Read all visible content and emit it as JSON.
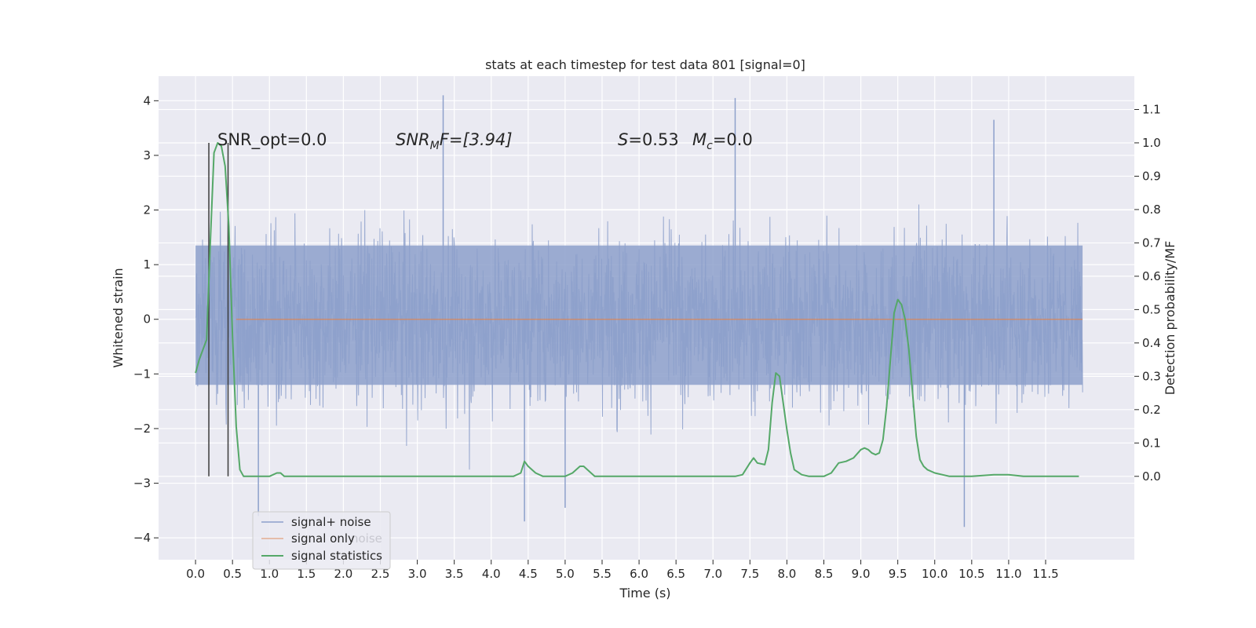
{
  "chart_data": {
    "type": "line",
    "title": "stats at each timestep for test data 801 [signal=0]",
    "xlabel": "Time (s)",
    "ylabel": "Whitened strain",
    "ylabel_right": "Detection probability/MF",
    "xlim": [
      -0.5,
      12.7
    ],
    "ylim": [
      -4.4,
      4.45
    ],
    "ylim_right": [
      -0.25,
      1.2
    ],
    "x_ticks": [
      "0.0",
      "0.5",
      "1.0",
      "1.5",
      "2.0",
      "2.5",
      "3.0",
      "3.5",
      "4.0",
      "4.5",
      "5.0",
      "5.5",
      "6.0",
      "6.5",
      "7.0",
      "7.5",
      "8.0",
      "8.5",
      "9.0",
      "9.5",
      "10.0",
      "10.5",
      "11.0",
      "11.5"
    ],
    "y_ticks_left": [
      "4",
      "3",
      "2",
      "1",
      "0",
      "−1",
      "−2",
      "−3",
      "−4"
    ],
    "y_ticks_right": [
      "1.1",
      "1.0",
      "0.9",
      "0.8",
      "0.7",
      "0.6",
      "0.5",
      "0.4",
      "0.3",
      "0.2",
      "0.1",
      "0.0"
    ],
    "grid": true,
    "annotations": {
      "snr_opt": "SNR_opt=0.0",
      "snr_mf_pre": "SNR",
      "snr_mf_sub": "M",
      "snr_mf_post": "F=[3.94]",
      "s_label": "S",
      "s_value": "=0.53",
      "mc_label": "M",
      "mc_sub": "c",
      "mc_value": "=0.0"
    },
    "vlines_x": [
      0.18,
      0.44
    ],
    "series": [
      {
        "name": "signal+ noise",
        "color": "#8da0cb",
        "style": "noise",
        "x_range": [
          0.0,
          12.0
        ],
        "core_band": [
          -1.2,
          1.35
        ],
        "notable_peaks": [
          [
            3.35,
            4.1
          ],
          [
            7.3,
            4.05
          ],
          [
            10.8,
            3.65
          ],
          [
            0.85,
            -3.6
          ],
          [
            4.45,
            -3.7
          ],
          [
            10.4,
            -3.8
          ],
          [
            5.0,
            -3.45
          ]
        ]
      },
      {
        "name": "signal only",
        "color": "#dd8452",
        "style": "line",
        "x": [
          0.55,
          12.0
        ],
        "y": [
          0.0,
          0.0
        ]
      },
      {
        "name": "signal statistics",
        "color": "#55a868",
        "style": "line",
        "axis": "right",
        "x": [
          0.0,
          0.05,
          0.1,
          0.15,
          0.2,
          0.25,
          0.3,
          0.35,
          0.4,
          0.45,
          0.5,
          0.55,
          0.6,
          0.65,
          0.7,
          0.75,
          0.8,
          0.9,
          1.0,
          1.1,
          1.15,
          1.2,
          1.3,
          1.5,
          2.0,
          2.5,
          3.0,
          3.5,
          4.0,
          4.3,
          4.4,
          4.45,
          4.5,
          4.6,
          4.7,
          4.8,
          5.0,
          5.1,
          5.2,
          5.25,
          5.3,
          5.4,
          5.5,
          6.0,
          6.5,
          7.0,
          7.3,
          7.4,
          7.5,
          7.55,
          7.6,
          7.7,
          7.75,
          7.8,
          7.85,
          7.9,
          7.95,
          8.0,
          8.05,
          8.1,
          8.2,
          8.3,
          8.5,
          8.6,
          8.7,
          8.8,
          8.9,
          9.0,
          9.05,
          9.1,
          9.15,
          9.2,
          9.25,
          9.3,
          9.35,
          9.4,
          9.45,
          9.5,
          9.55,
          9.6,
          9.65,
          9.7,
          9.75,
          9.8,
          9.85,
          9.9,
          10.0,
          10.2,
          10.5,
          10.8,
          11.0,
          11.2,
          11.5,
          11.95
        ],
        "y": [
          0.31,
          0.35,
          0.38,
          0.41,
          0.7,
          0.97,
          1.0,
          0.99,
          0.93,
          0.75,
          0.42,
          0.15,
          0.02,
          0.0,
          0.0,
          0.0,
          0.0,
          0.0,
          0.0,
          0.01,
          0.01,
          0.0,
          0.0,
          0.0,
          0.0,
          0.0,
          0.0,
          0.0,
          0.0,
          0.0,
          0.01,
          0.045,
          0.03,
          0.01,
          0.0,
          0.0,
          0.0,
          0.01,
          0.03,
          0.03,
          0.02,
          0.0,
          0.0,
          0.0,
          0.0,
          0.0,
          0.0,
          0.005,
          0.04,
          0.055,
          0.04,
          0.035,
          0.08,
          0.22,
          0.31,
          0.3,
          0.22,
          0.14,
          0.07,
          0.02,
          0.005,
          0.0,
          0.0,
          0.01,
          0.04,
          0.045,
          0.055,
          0.08,
          0.085,
          0.08,
          0.07,
          0.065,
          0.07,
          0.11,
          0.21,
          0.35,
          0.49,
          0.53,
          0.515,
          0.47,
          0.38,
          0.25,
          0.12,
          0.05,
          0.03,
          0.02,
          0.01,
          0.0,
          0.0,
          0.005,
          0.005,
          0.0,
          0.0,
          0.0
        ]
      }
    ],
    "legend": {
      "placement": "lower-left",
      "entries": [
        "signal+ noise",
        "signal only",
        "signal statistics"
      ],
      "ghost_text": "noise"
    }
  }
}
